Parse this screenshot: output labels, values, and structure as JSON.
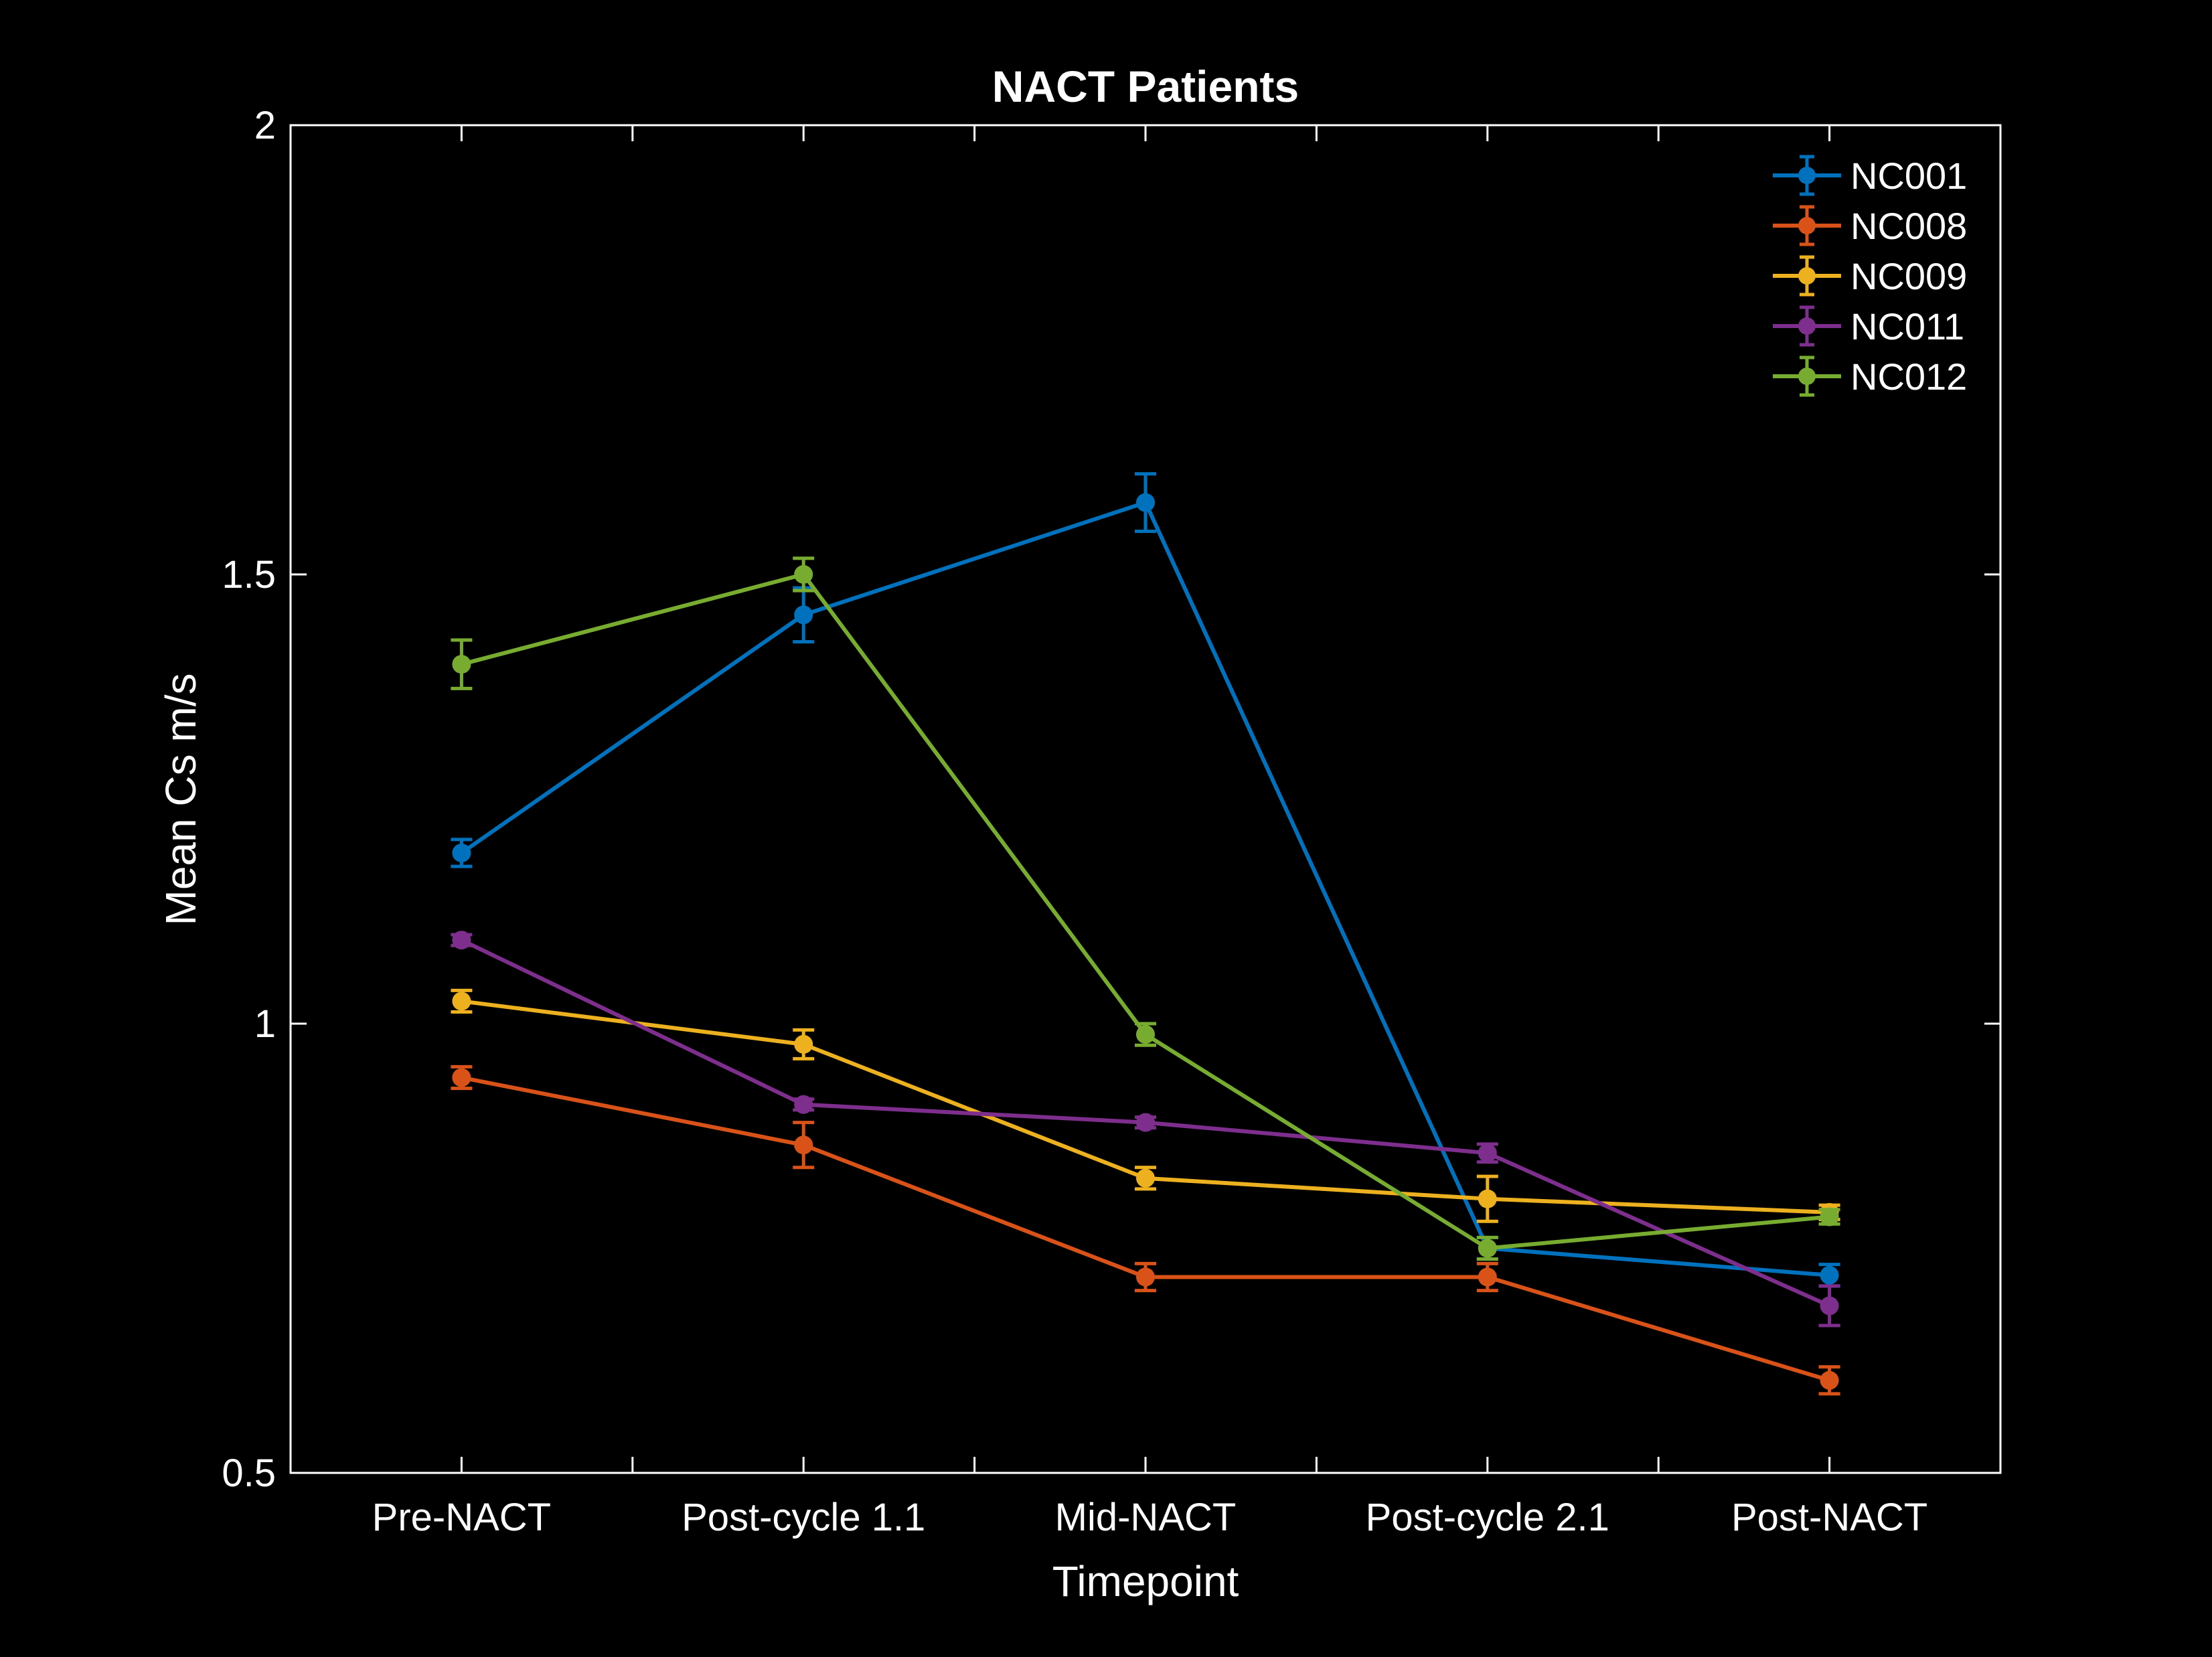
{
  "chart_data": {
    "type": "line",
    "title": "NACT Patients",
    "xlabel": "Timepoint",
    "ylabel": "Mean Cs m/s",
    "categories": [
      "Pre-NACT",
      "Post-cycle 1.1",
      "Mid-NACT",
      "Post-cycle 2.1",
      "Post-NACT"
    ],
    "ylim": [
      0.5,
      2
    ],
    "yticks": [
      0.5,
      1,
      1.5,
      2
    ],
    "ytick_labels": [
      "0.5",
      "1",
      "1.5",
      "2"
    ],
    "legend_position": "top-right",
    "error_bars": true,
    "series": [
      {
        "name": "NC001",
        "color": "#0072BD",
        "values": [
          1.19,
          1.455,
          1.58,
          0.75,
          0.72
        ],
        "errors": [
          0.015,
          0.03,
          0.032,
          0.012,
          0.012
        ]
      },
      {
        "name": "NC008",
        "color": "#D95319",
        "values": [
          0.94,
          0.865,
          0.718,
          0.718,
          0.603
        ],
        "errors": [
          0.012,
          0.025,
          0.015,
          0.015,
          0.015
        ]
      },
      {
        "name": "NC009",
        "color": "#EDB120",
        "values": [
          1.025,
          0.977,
          0.828,
          0.805,
          0.79
        ],
        "errors": [
          0.012,
          0.016,
          0.012,
          0.025,
          0.008
        ]
      },
      {
        "name": "NC011",
        "color": "#7E2F8E",
        "values": [
          1.093,
          0.91,
          0.89,
          0.856,
          0.686
        ],
        "errors": [
          0.006,
          0.006,
          0.006,
          0.01,
          0.022
        ]
      },
      {
        "name": "NC012",
        "color": "#77AC30",
        "values": [
          1.4,
          1.5,
          0.988,
          0.75,
          0.785
        ],
        "errors": [
          0.027,
          0.018,
          0.012,
          0.012,
          0.008
        ]
      }
    ]
  }
}
